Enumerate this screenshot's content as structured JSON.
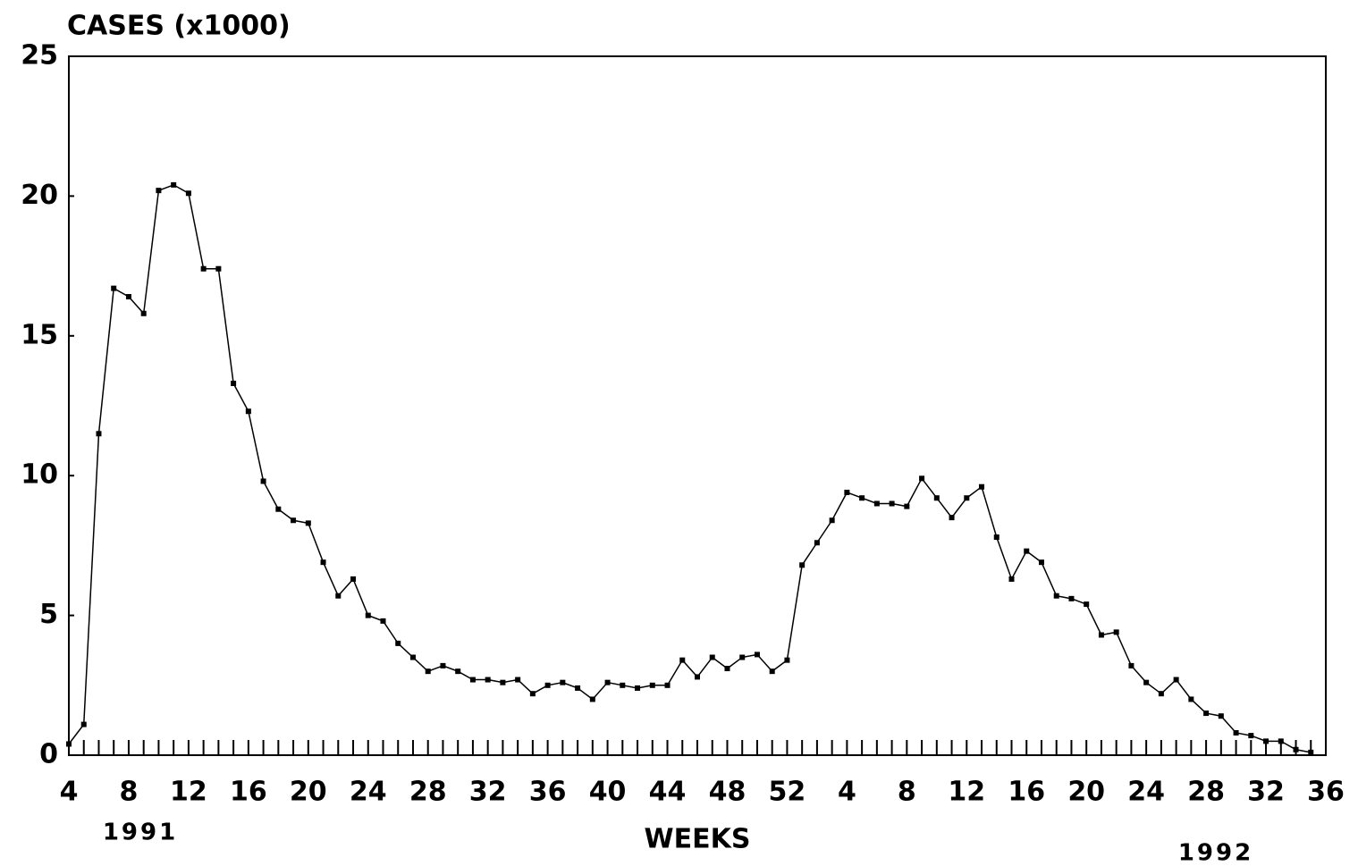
{
  "chart_data": {
    "type": "line",
    "title": "CASES (x1000)",
    "xlabel": "WEEKS",
    "annotations": [
      "1991",
      "1992"
    ],
    "categories": [
      "4",
      null,
      null,
      null,
      "8",
      null,
      null,
      null,
      "12",
      null,
      null,
      null,
      "16",
      null,
      null,
      null,
      "20",
      null,
      null,
      null,
      "24",
      null,
      null,
      null,
      "28",
      null,
      null,
      null,
      "32",
      null,
      null,
      null,
      "36",
      null,
      null,
      null,
      "40",
      null,
      null,
      null,
      "44",
      null,
      null,
      null,
      "48",
      null,
      null,
      null,
      "52",
      null,
      null,
      null,
      "4",
      null,
      null,
      null,
      "8",
      null,
      null,
      null,
      "12",
      null,
      null,
      null,
      "16",
      null,
      null,
      null,
      "20",
      null,
      null,
      null,
      "24",
      null,
      null,
      null,
      "28",
      null,
      null,
      null,
      "32",
      null,
      null,
      null,
      "36"
    ],
    "series": [
      {
        "name": "Cases",
        "color": "#000000",
        "values": [
          0.4,
          1.1,
          11.5,
          16.7,
          16.4,
          15.8,
          20.2,
          20.4,
          20.1,
          17.4,
          17.4,
          13.3,
          12.3,
          9.8,
          8.8,
          8.4,
          8.3,
          6.9,
          5.7,
          6.3,
          5.0,
          4.8,
          4.0,
          3.5,
          3.0,
          3.2,
          3.0,
          2.7,
          2.7,
          2.6,
          2.7,
          2.2,
          2.5,
          2.6,
          2.4,
          2.0,
          2.6,
          2.5,
          2.4,
          2.5,
          2.5,
          3.4,
          2.8,
          3.5,
          3.1,
          3.5,
          3.6,
          3.0,
          3.4,
          6.8,
          7.6,
          8.4,
          9.4,
          9.2,
          9.0,
          9.0,
          8.9,
          9.9,
          9.2,
          8.5,
          9.2,
          9.6,
          7.8,
          6.3,
          7.3,
          6.9,
          5.7,
          5.6,
          5.4,
          4.3,
          4.4,
          3.2,
          2.6,
          2.2,
          2.7,
          2.0,
          1.5,
          1.4,
          0.8,
          0.7,
          0.5,
          0.5,
          0.2,
          0.1,
          null
        ]
      }
    ],
    "ylim": [
      0,
      25
    ],
    "yticks": [
      0,
      5,
      10,
      15,
      20,
      25
    ],
    "grid": false
  }
}
